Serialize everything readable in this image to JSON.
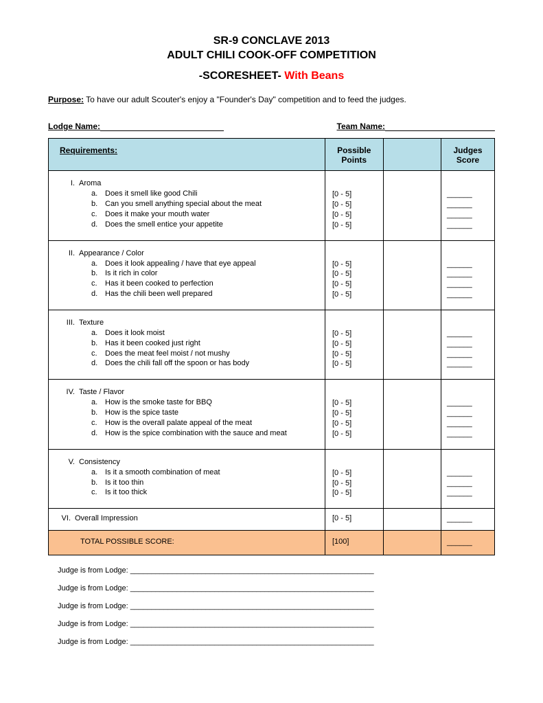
{
  "title_line1": "SR-9 CONCLAVE 2013",
  "title_line2": "ADULT CHILI COOK-OFF COMPETITION",
  "subtitle_prefix": "-SCORESHEET- ",
  "subtitle_red": "With Beans",
  "purpose_label": "Purpose:",
  "purpose_text": " To have our adult Scouter's enjoy a \"Founder's Day\" competition and to feed the judges.",
  "lodge_name_label": "Lodge Name:",
  "team_name_label": "Team Name:",
  "headers": {
    "requirements": "Requirements:",
    "possible_points": "Possible Points",
    "judges_score": "Judges Score"
  },
  "point_range": "[0  - 5]",
  "score_blank": "______",
  "sections": [
    {
      "roman": "I.",
      "title": "Aroma",
      "items": [
        {
          "l": "a.",
          "t": "Does it smell like good Chili"
        },
        {
          "l": "b.",
          "t": "Can you smell anything special about the meat"
        },
        {
          "l": "c.",
          "t": "Does it make your mouth water"
        },
        {
          "l": "d.",
          "t": "Does the smell entice your appetite"
        }
      ]
    },
    {
      "roman": "II.",
      "title": "Appearance / Color",
      "items": [
        {
          "l": "a.",
          "t": "Does it look appealing / have that eye appeal"
        },
        {
          "l": "b.",
          "t": "Is it rich in color"
        },
        {
          "l": "c.",
          "t": "Has it been cooked to perfection"
        },
        {
          "l": "d.",
          "t": "Has the chili been well prepared"
        }
      ]
    },
    {
      "roman": "III.",
      "title": "Texture",
      "items": [
        {
          "l": "a.",
          "t": "Does it look moist"
        },
        {
          "l": "b.",
          "t": "Has it been cooked just right"
        },
        {
          "l": "c.",
          "t": "Does the meat feel moist / not mushy"
        },
        {
          "l": "d.",
          "t": "Does the chili fall off the spoon or has body"
        }
      ]
    },
    {
      "roman": "IV.",
      "title": "Taste / Flavor",
      "items": [
        {
          "l": "a.",
          "t": "How is the smoke taste for BBQ"
        },
        {
          "l": "b.",
          "t": "How is the spice taste"
        },
        {
          "l": "c.",
          "t": "How is the overall palate appeal of the meat"
        },
        {
          "l": "d.",
          "t": "How is the spice combination with the sauce and meat"
        }
      ]
    },
    {
      "roman": "V.",
      "title": "Consistency",
      "items": [
        {
          "l": "a.",
          "t": "Is it a smooth combination of meat"
        },
        {
          "l": "b.",
          "t": "Is it too thin"
        },
        {
          "l": "c.",
          "t": "Is it too thick"
        }
      ]
    }
  ],
  "section_vi": {
    "roman": "VI.",
    "title": "Overall Impression"
  },
  "total_label": "TOTAL POSSIBLE SCORE:",
  "total_points": "[100]",
  "judge_label": "Judge is from Lodge: ",
  "judge_fill": "__________________________________________________________",
  "judge_count": 5,
  "colors": {
    "header_bg": "#b7dee8",
    "total_bg": "#fac090",
    "red": "#ff0000",
    "border": "#000000",
    "text": "#000000",
    "page_bg": "#ffffff"
  }
}
